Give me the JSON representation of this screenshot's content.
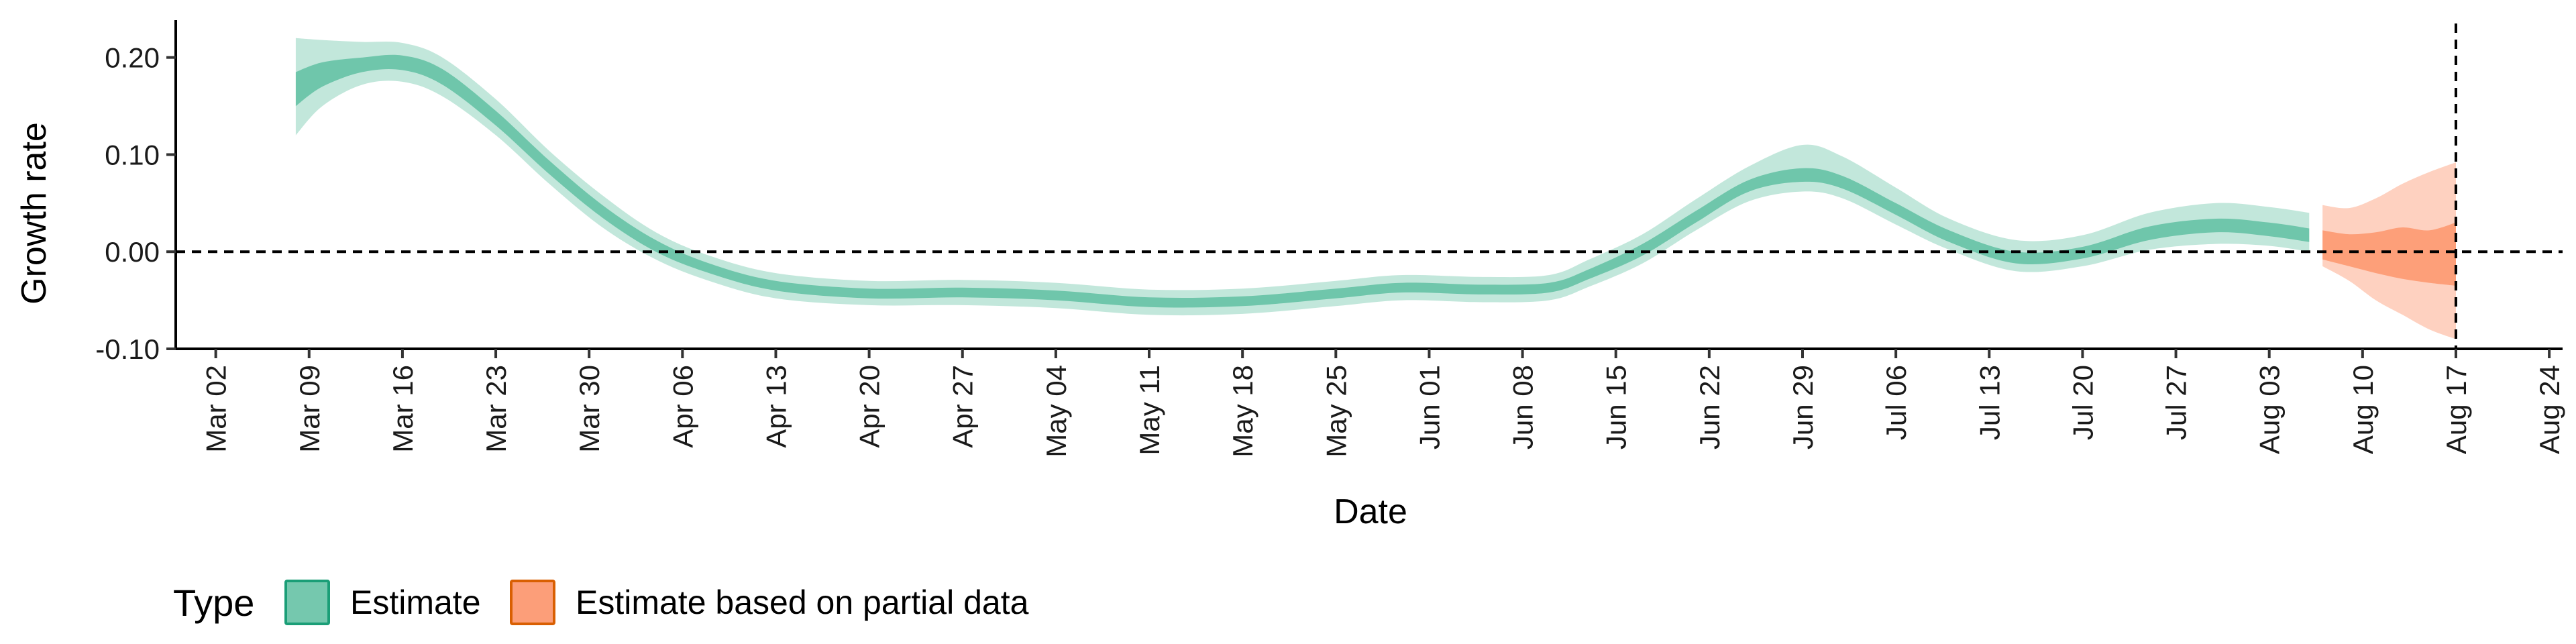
{
  "chart_data": {
    "type": "area",
    "title": "",
    "xlabel": "Date",
    "ylabel": "Growth rate",
    "ylim": [
      -0.1,
      0.235
    ],
    "xlim": [
      "2020-02-28",
      "2020-08-25"
    ],
    "y_ticks": [
      -0.1,
      0.0,
      0.1,
      0.2
    ],
    "y_tick_labels": [
      "-0.10",
      "0.00",
      "0.10",
      "0.20"
    ],
    "x_ticks": [
      "2020-03-02",
      "2020-03-09",
      "2020-03-16",
      "2020-03-23",
      "2020-03-30",
      "2020-04-06",
      "2020-04-13",
      "2020-04-20",
      "2020-04-27",
      "2020-05-04",
      "2020-05-11",
      "2020-05-18",
      "2020-05-25",
      "2020-06-01",
      "2020-06-08",
      "2020-06-15",
      "2020-06-22",
      "2020-06-29",
      "2020-07-06",
      "2020-07-13",
      "2020-07-20",
      "2020-07-27",
      "2020-08-03",
      "2020-08-10",
      "2020-08-17",
      "2020-08-24"
    ],
    "x_tick_labels": [
      "Mar 02",
      "Mar 09",
      "Mar 16",
      "Mar 23",
      "Mar 30",
      "Apr 06",
      "Apr 13",
      "Apr 20",
      "Apr 27",
      "May 04",
      "May 11",
      "May 18",
      "May 25",
      "Jun 01",
      "Jun 08",
      "Jun 15",
      "Jun 22",
      "Jun 29",
      "Jul 06",
      "Jul 13",
      "Jul 20",
      "Jul 27",
      "Aug 03",
      "Aug 10",
      "Aug 17",
      "Aug 24"
    ],
    "reference_lines": {
      "horizontal_y": 0.0,
      "vertical_date": "2020-08-17",
      "style": "dashed"
    },
    "grid": false,
    "legend": {
      "title": "Type",
      "position": "bottom-left"
    },
    "series": [
      {
        "name": "Estimate",
        "color": "#66c2a5",
        "points": [
          {
            "x": "2020-03-08",
            "lo90": 0.12,
            "lo50": 0.15,
            "hi50": 0.185,
            "hi90": 0.22
          },
          {
            "x": "2020-03-10",
            "lo90": 0.15,
            "lo50": 0.17,
            "hi50": 0.195,
            "hi90": 0.218
          },
          {
            "x": "2020-03-13",
            "lo90": 0.172,
            "lo50": 0.185,
            "hi50": 0.2,
            "hi90": 0.216
          },
          {
            "x": "2020-03-16",
            "lo90": 0.175,
            "lo50": 0.187,
            "hi50": 0.202,
            "hi90": 0.215
          },
          {
            "x": "2020-03-19",
            "lo90": 0.16,
            "lo50": 0.172,
            "hi50": 0.188,
            "hi90": 0.2
          },
          {
            "x": "2020-03-23",
            "lo90": 0.12,
            "lo50": 0.13,
            "hi50": 0.145,
            "hi90": 0.157
          },
          {
            "x": "2020-03-27",
            "lo90": 0.07,
            "lo50": 0.08,
            "hi50": 0.094,
            "hi90": 0.104
          },
          {
            "x": "2020-03-31",
            "lo90": 0.025,
            "lo50": 0.035,
            "hi50": 0.048,
            "hi90": 0.058
          },
          {
            "x": "2020-04-04",
            "lo90": -0.008,
            "lo50": 0.0,
            "hi50": 0.012,
            "hi90": 0.02
          },
          {
            "x": "2020-04-08",
            "lo90": -0.03,
            "lo50": -0.022,
            "hi50": -0.012,
            "hi90": -0.004
          },
          {
            "x": "2020-04-13",
            "lo90": -0.048,
            "lo50": -0.04,
            "hi50": -0.03,
            "hi90": -0.022
          },
          {
            "x": "2020-04-20",
            "lo90": -0.055,
            "lo50": -0.048,
            "hi50": -0.038,
            "hi90": -0.03
          },
          {
            "x": "2020-04-27",
            "lo90": -0.055,
            "lo50": -0.047,
            "hi50": -0.037,
            "hi90": -0.029
          },
          {
            "x": "2020-05-04",
            "lo90": -0.058,
            "lo50": -0.05,
            "hi50": -0.04,
            "hi90": -0.032
          },
          {
            "x": "2020-05-11",
            "lo90": -0.065,
            "lo50": -0.057,
            "hi50": -0.047,
            "hi90": -0.039
          },
          {
            "x": "2020-05-18",
            "lo90": -0.064,
            "lo50": -0.056,
            "hi50": -0.046,
            "hi90": -0.038
          },
          {
            "x": "2020-05-25",
            "lo90": -0.056,
            "lo50": -0.048,
            "hi50": -0.038,
            "hi90": -0.03
          },
          {
            "x": "2020-05-30",
            "lo90": -0.05,
            "lo50": -0.042,
            "hi50": -0.032,
            "hi90": -0.024
          },
          {
            "x": "2020-06-05",
            "lo90": -0.052,
            "lo50": -0.044,
            "hi50": -0.034,
            "hi90": -0.026
          },
          {
            "x": "2020-06-10",
            "lo90": -0.05,
            "lo50": -0.042,
            "hi50": -0.032,
            "hi90": -0.024
          },
          {
            "x": "2020-06-13",
            "lo90": -0.036,
            "lo50": -0.028,
            "hi50": -0.018,
            "hi90": -0.008
          },
          {
            "x": "2020-06-17",
            "lo90": -0.012,
            "lo50": -0.004,
            "hi50": 0.008,
            "hi90": 0.018
          },
          {
            "x": "2020-06-21",
            "lo90": 0.022,
            "lo50": 0.03,
            "hi50": 0.042,
            "hi90": 0.054
          },
          {
            "x": "2020-06-25",
            "lo90": 0.052,
            "lo50": 0.062,
            "hi50": 0.074,
            "hi90": 0.088
          },
          {
            "x": "2020-06-29",
            "lo90": 0.062,
            "lo50": 0.072,
            "hi50": 0.086,
            "hi90": 0.11
          },
          {
            "x": "2020-07-02",
            "lo90": 0.055,
            "lo50": 0.065,
            "hi50": 0.078,
            "hi90": 0.098
          },
          {
            "x": "2020-07-06",
            "lo90": 0.028,
            "lo50": 0.038,
            "hi50": 0.05,
            "hi90": 0.066
          },
          {
            "x": "2020-07-10",
            "lo90": 0.002,
            "lo50": 0.01,
            "hi50": 0.022,
            "hi90": 0.034
          },
          {
            "x": "2020-07-15",
            "lo90": -0.02,
            "lo50": -0.012,
            "hi50": 0.0,
            "hi90": 0.012
          },
          {
            "x": "2020-07-20",
            "lo90": -0.015,
            "lo50": -0.007,
            "hi50": 0.005,
            "hi90": 0.017
          },
          {
            "x": "2020-07-25",
            "lo90": 0.002,
            "lo50": 0.012,
            "hi50": 0.026,
            "hi90": 0.04
          },
          {
            "x": "2020-07-30",
            "lo90": 0.008,
            "lo50": 0.02,
            "hi50": 0.034,
            "hi90": 0.05
          },
          {
            "x": "2020-08-03",
            "lo90": 0.006,
            "lo50": 0.016,
            "hi50": 0.03,
            "hi90": 0.046
          },
          {
            "x": "2020-08-06",
            "lo90": 0.0,
            "lo50": 0.01,
            "hi50": 0.024,
            "hi90": 0.04
          }
        ]
      },
      {
        "name": "Estimate based on partial data",
        "color": "#fc8d62",
        "points": [
          {
            "x": "2020-08-07",
            "lo90": -0.015,
            "lo50": -0.008,
            "hi50": 0.022,
            "hi90": 0.048
          },
          {
            "x": "2020-08-09",
            "lo90": -0.03,
            "lo50": -0.015,
            "hi50": 0.018,
            "hi90": 0.045
          },
          {
            "x": "2020-08-11",
            "lo90": -0.05,
            "lo50": -0.022,
            "hi50": 0.02,
            "hi90": 0.055
          },
          {
            "x": "2020-08-13",
            "lo90": -0.065,
            "lo50": -0.028,
            "hi50": 0.025,
            "hi90": 0.07
          },
          {
            "x": "2020-08-15",
            "lo90": -0.08,
            "lo50": -0.032,
            "hi50": 0.022,
            "hi90": 0.082
          },
          {
            "x": "2020-08-17",
            "lo90": -0.09,
            "lo50": -0.035,
            "hi50": 0.03,
            "hi90": 0.092
          }
        ]
      }
    ]
  }
}
